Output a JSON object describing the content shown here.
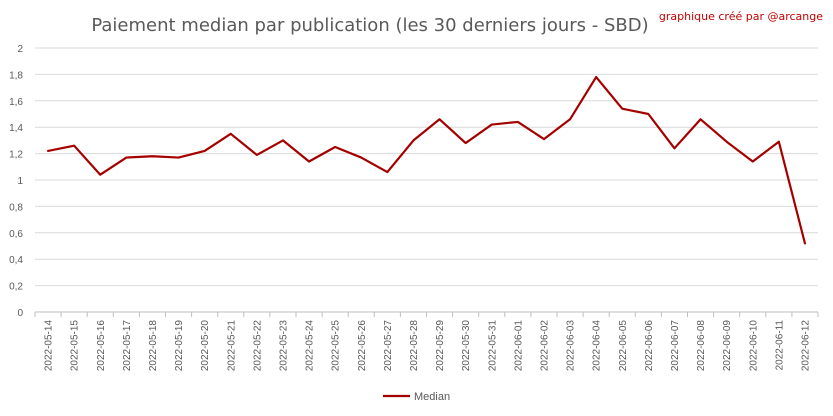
{
  "chart_data": {
    "type": "line",
    "title": "Paiement median par publication (les 30 derniers jours - SBD)",
    "credit": "graphique créé par @arcange",
    "xlabel": "",
    "ylabel": "",
    "ylim": [
      0,
      2
    ],
    "yticks": [
      "0",
      "0,2",
      "0,4",
      "0,6",
      "0,8",
      "1",
      "1,2",
      "1,4",
      "1,6",
      "1,8",
      "2"
    ],
    "grid": true,
    "legend_position": "bottom",
    "line_color": "#a50000",
    "categories": [
      "2022-05-14",
      "2022-05-15",
      "2022-05-16",
      "2022-05-17",
      "2022-05-18",
      "2022-05-19",
      "2022-05-20",
      "2022-05-21",
      "2022-05-22",
      "2022-05-23",
      "2022-05-24",
      "2022-05-25",
      "2022-05-26",
      "2022-05-27",
      "2022-05-28",
      "2022-05-29",
      "2022-05-30",
      "2022-05-31",
      "2022-06-01",
      "2022-06-02",
      "2022-06-03",
      "2022-06-04",
      "2022-06-05",
      "2022-06-06",
      "2022-06-07",
      "2022-06-08",
      "2022-06-09",
      "2022-06-10",
      "2022-06-11",
      "2022-06-12"
    ],
    "series": [
      {
        "name": "Median",
        "values": [
          1.22,
          1.26,
          1.04,
          1.17,
          1.18,
          1.17,
          1.22,
          1.35,
          1.19,
          1.3,
          1.14,
          1.25,
          1.17,
          1.06,
          1.3,
          1.46,
          1.28,
          1.42,
          1.44,
          1.31,
          1.46,
          1.78,
          1.54,
          1.5,
          1.24,
          1.46,
          1.29,
          1.14,
          1.29,
          0.52
        ]
      }
    ]
  }
}
